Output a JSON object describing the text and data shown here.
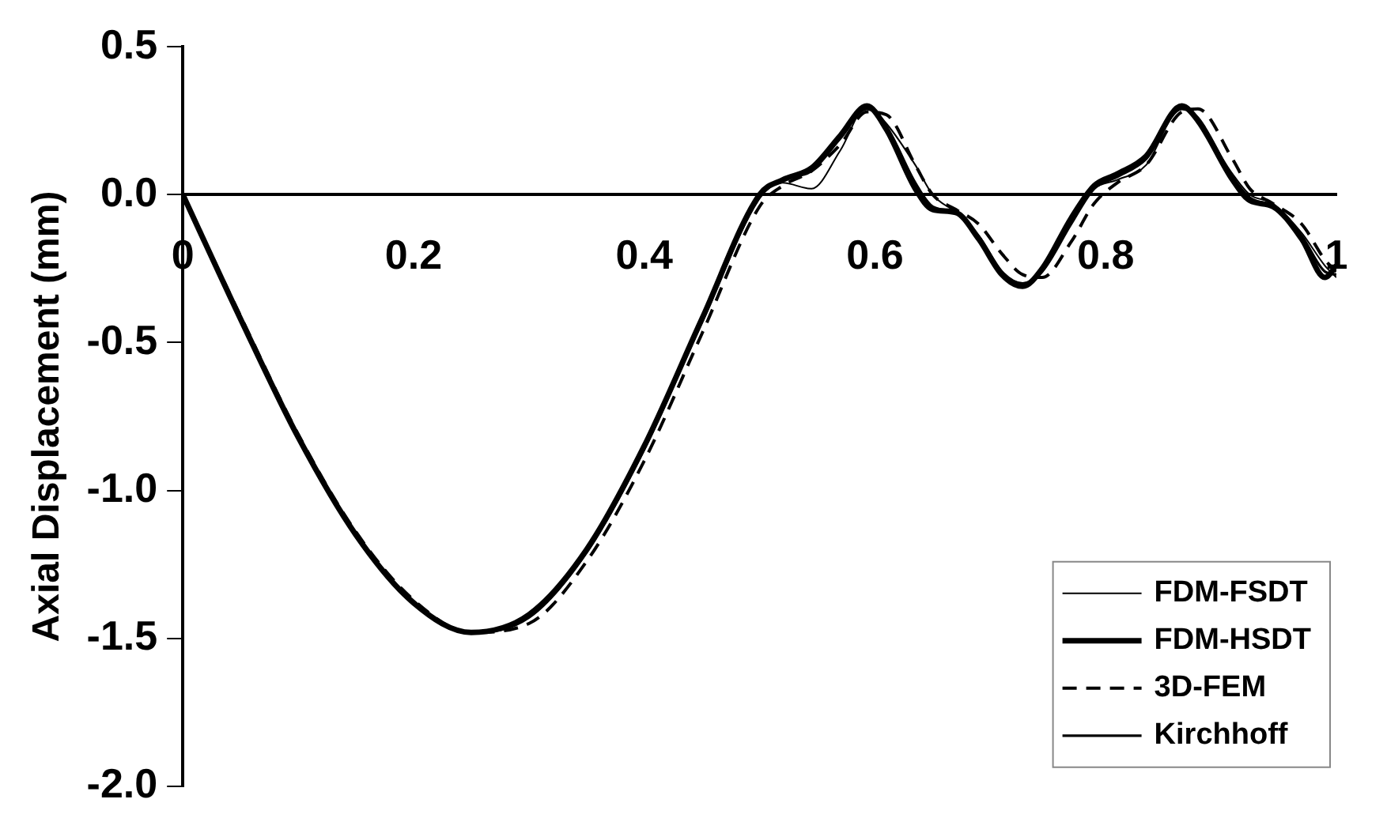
{
  "chart_data": {
    "type": "line",
    "ylabel": "Axial Displacement (mm)",
    "xlim": [
      0,
      1
    ],
    "xticks": [
      0,
      0.2,
      0.4,
      0.6,
      0.8,
      1
    ],
    "ylim": [
      -2.0,
      0.5
    ],
    "yticks": [
      {
        "value": -2.0,
        "label": "-2.0"
      },
      {
        "value": -1.5,
        "label": "-1.5"
      },
      {
        "value": -1.0,
        "label": "-1.0"
      },
      {
        "value": -0.5,
        "label": "-0.5"
      },
      {
        "value": 0,
        "label": "0.0"
      },
      {
        "value": 0.5,
        "label": "0.5"
      }
    ],
    "grid": false,
    "legend": "bottom right",
    "marker": "none",
    "x": [
      0,
      0.05,
      0.1,
      0.15,
      0.2,
      0.25,
      0.3,
      0.35,
      0.4,
      0.45,
      0.5,
      0.52,
      0.545,
      0.57,
      0.593,
      0.61,
      0.635,
      0.65,
      0.67,
      0.69,
      0.71,
      0.728,
      0.745,
      0.77,
      0.79,
      0.81,
      0.835,
      0.866,
      0.88,
      0.91,
      0.925,
      0.945,
      0.97,
      0.99,
      1.0
    ],
    "series": [
      {
        "name": "FDM-FSDT",
        "color": "#000000",
        "line_style": "solid",
        "values": [
          0,
          -0.42,
          -0.82,
          -1.15,
          -1.38,
          -1.48,
          -1.42,
          -1.2,
          -0.85,
          -0.42,
          0,
          0.04,
          0.02,
          0.15,
          0.3,
          0.24,
          0.1,
          0.0,
          -0.06,
          -0.14,
          -0.26,
          -0.3,
          -0.25,
          -0.09,
          0.02,
          0.05,
          0.1,
          0.3,
          0.25,
          0.07,
          0.0,
          -0.03,
          -0.13,
          -0.24,
          -0.28
        ]
      },
      {
        "name": "FDM-HSDT",
        "color": "#000000",
        "line_style": "solid",
        "values": [
          0,
          -0.42,
          -0.82,
          -1.15,
          -1.38,
          -1.48,
          -1.42,
          -1.2,
          -0.85,
          -0.42,
          0,
          0.05,
          0.09,
          0.2,
          0.3,
          0.22,
          0.02,
          -0.05,
          -0.06,
          -0.15,
          -0.27,
          -0.31,
          -0.25,
          -0.08,
          0.03,
          0.07,
          0.13,
          0.3,
          0.25,
          0.05,
          -0.02,
          -0.04,
          -0.15,
          -0.28,
          -0.24
        ]
      },
      {
        "name": "3D-FEM",
        "color": "#000000",
        "line_style": "dashed",
        "values": [
          0,
          -0.41,
          -0.81,
          -1.14,
          -1.37,
          -1.48,
          -1.45,
          -1.24,
          -0.9,
          -0.47,
          -0.04,
          0.03,
          0.08,
          0.17,
          0.28,
          0.27,
          0.1,
          0.0,
          -0.05,
          -0.1,
          -0.2,
          -0.27,
          -0.28,
          -0.16,
          -0.03,
          0.04,
          0.1,
          0.28,
          0.29,
          0.12,
          0.02,
          -0.03,
          -0.1,
          -0.22,
          -0.26
        ]
      },
      {
        "name": "Kirchhoff",
        "color": "#000000",
        "line_style": "solid",
        "values": [
          0,
          -0.42,
          -0.82,
          -1.15,
          -1.38,
          -1.48,
          -1.43,
          -1.21,
          -0.86,
          -0.43,
          -0.01,
          0.05,
          0.08,
          0.19,
          0.29,
          0.23,
          0.04,
          -0.04,
          -0.06,
          -0.14,
          -0.26,
          -0.3,
          -0.26,
          -0.1,
          0.02,
          0.06,
          0.12,
          0.29,
          0.26,
          0.06,
          -0.01,
          -0.04,
          -0.14,
          -0.26,
          -0.27
        ]
      }
    ]
  }
}
